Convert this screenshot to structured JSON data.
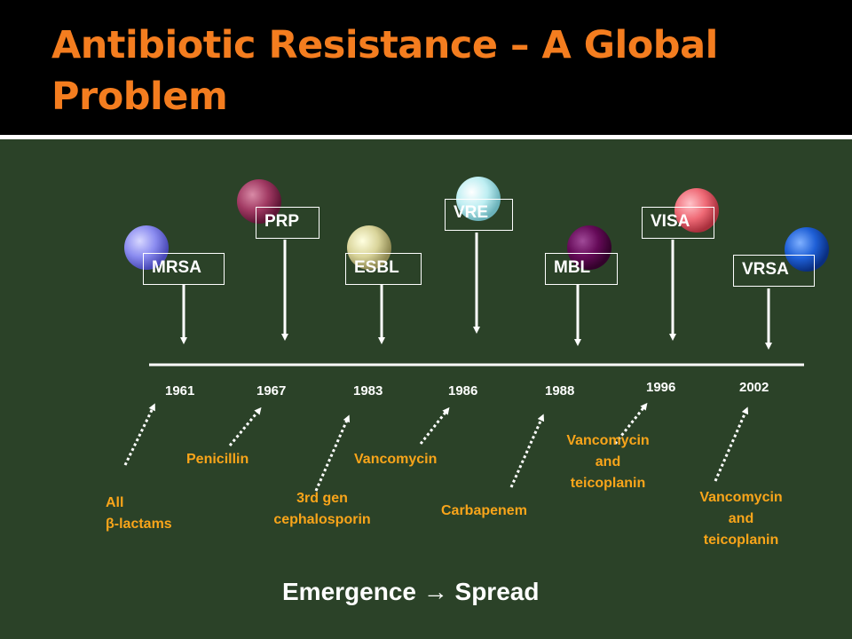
{
  "title": "Antibiotic Resistance – A Global Problem",
  "organisms": [
    {
      "label": "MRSA",
      "color": "#8b8cf0"
    },
    {
      "label": "PRP",
      "color": "#a13a63"
    },
    {
      "label": "ESBL",
      "color": "#d9d49a"
    },
    {
      "label": "VRE",
      "color": "#bdeef2"
    },
    {
      "label": "MBL",
      "color": "#650a58"
    },
    {
      "label": "VISA",
      "color": "#ef6a76"
    },
    {
      "label": "VRSA",
      "color": "#1e5fd6"
    }
  ],
  "years": [
    "1961",
    "1967",
    "1983",
    "1986",
    "1988",
    "1996",
    "2002"
  ],
  "drugs": [
    {
      "line1": "All",
      "line2": "β-lactams"
    },
    {
      "line1": "Penicillin"
    },
    {
      "line1": "3rd gen",
      "line2": "cephalosporin"
    },
    {
      "line1": "Vancomycin"
    },
    {
      "line1": "Carbapenem"
    },
    {
      "line1": "Vancomycin",
      "line2": "and",
      "line3": "teicoplanin"
    },
    {
      "line1": "Vancomycin",
      "line2": "and",
      "line3": "teicoplanin"
    }
  ],
  "footer": "Emergence → Spread"
}
